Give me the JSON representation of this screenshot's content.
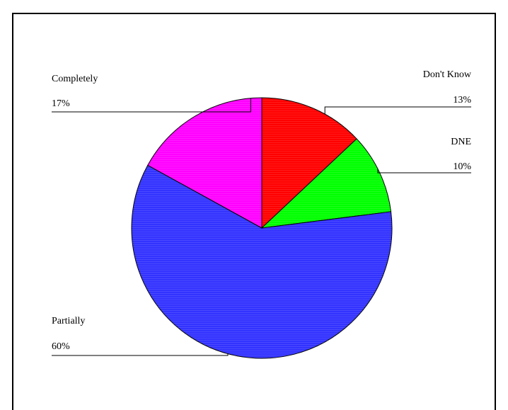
{
  "chart_data": {
    "type": "pie",
    "slices": [
      {
        "label": "Don't Know",
        "value": 13,
        "display": "13%",
        "color": "#ff0000"
      },
      {
        "label": "DNE",
        "value": 10,
        "display": "10%",
        "color": "#00ff00"
      },
      {
        "label": "Partially",
        "value": 60,
        "display": "60%",
        "color": "#3333ff"
      },
      {
        "label": "Completely",
        "value": 17,
        "display": "17%",
        "color": "#ff00ff"
      }
    ],
    "start_angle_deg": 0,
    "direction": "clockwise",
    "legend": "none"
  }
}
